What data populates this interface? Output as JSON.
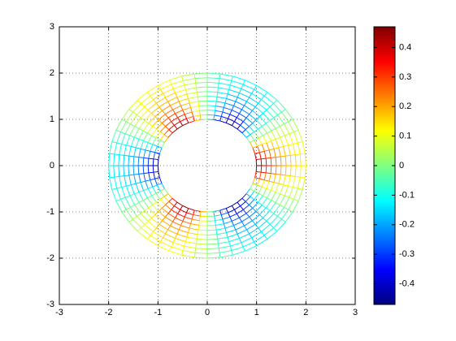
{
  "chart_data": {
    "type": "mesh",
    "colormap": "jet",
    "grid": true,
    "xlim": [
      -3,
      3
    ],
    "ylim": [
      -3,
      3
    ],
    "xticks": [
      -3,
      -2,
      -1,
      0,
      1,
      2,
      3
    ],
    "yticks": [
      -3,
      -2,
      -1,
      0,
      1,
      2,
      3
    ],
    "r": [
      1,
      1.1,
      1.2,
      1.3,
      1.4,
      1.5,
      1.6,
      1.7,
      1.8,
      1.9,
      2
    ],
    "theta": [
      0,
      7.5,
      15,
      22.5,
      30,
      37.5,
      45,
      52.5,
      60,
      67.5,
      75,
      82.5,
      90,
      97.5,
      105,
      112.5,
      120,
      127.5,
      135,
      142.5,
      150,
      157.5,
      165,
      172.5,
      180,
      187.5,
      195,
      202.5,
      210,
      217.5,
      225,
      232.5,
      240,
      247.5,
      255,
      262.5,
      270,
      277.5,
      285,
      292.5,
      300,
      307.5,
      315,
      322.5,
      330,
      337.5,
      345,
      352.5
    ],
    "z": [
      [
        0.47,
        0.43,
        0.33,
        0.18,
        0,
        -0.18,
        -0.33,
        -0.43,
        -0.47,
        -0.43,
        -0.33,
        -0.18,
        0,
        0.18,
        0.33,
        0.43,
        0.47,
        0.43,
        0.33,
        0.18,
        0,
        -0.18,
        -0.33,
        -0.43,
        -0.47,
        -0.43,
        -0.33,
        -0.18,
        0,
        0.18,
        0.33,
        0.43,
        0.47,
        0.43,
        0.33,
        0.18,
        0,
        -0.18,
        -0.33,
        -0.43,
        -0.47,
        -0.43,
        -0.33,
        -0.18,
        0,
        0.18,
        0.33,
        0.43
      ],
      [
        0.39,
        0.36,
        0.27,
        0.15,
        0,
        -0.15,
        -0.27,
        -0.36,
        -0.39,
        -0.36,
        -0.27,
        -0.15,
        0,
        0.15,
        0.27,
        0.36,
        0.39,
        0.36,
        0.27,
        0.15,
        0,
        -0.15,
        -0.27,
        -0.36,
        -0.39,
        -0.36,
        -0.27,
        -0.15,
        0,
        0.15,
        0.27,
        0.36,
        0.39,
        0.36,
        0.27,
        0.15,
        0,
        -0.15,
        -0.27,
        -0.36,
        -0.39,
        -0.36,
        -0.27,
        -0.15,
        0,
        0.15,
        0.27,
        0.36
      ],
      [
        0.33,
        0.3,
        0.23,
        0.12,
        0,
        -0.12,
        -0.23,
        -0.3,
        -0.33,
        -0.3,
        -0.23,
        -0.12,
        0,
        0.12,
        0.23,
        0.3,
        0.33,
        0.3,
        0.23,
        0.12,
        0,
        -0.12,
        -0.23,
        -0.3,
        -0.33,
        -0.3,
        -0.23,
        -0.12,
        0,
        0.12,
        0.23,
        0.3,
        0.33,
        0.3,
        0.23,
        0.12,
        0,
        -0.12,
        -0.23,
        -0.3,
        -0.33,
        -0.3,
        -0.23,
        -0.12,
        0,
        0.12,
        0.23,
        0.3
      ],
      [
        0.28,
        0.26,
        0.2,
        0.11,
        0,
        -0.11,
        -0.2,
        -0.26,
        -0.28,
        -0.26,
        -0.2,
        -0.11,
        0,
        0.11,
        0.2,
        0.26,
        0.28,
        0.26,
        0.2,
        0.11,
        0,
        -0.11,
        -0.2,
        -0.26,
        -0.28,
        -0.26,
        -0.2,
        -0.11,
        0,
        0.11,
        0.2,
        0.26,
        0.28,
        0.26,
        0.2,
        0.11,
        0,
        -0.11,
        -0.2,
        -0.26,
        -0.28,
        -0.26,
        -0.2,
        -0.11,
        0,
        0.11,
        0.2,
        0.26
      ],
      [
        0.24,
        0.22,
        0.17,
        0.09,
        0,
        -0.09,
        -0.17,
        -0.22,
        -0.24,
        -0.22,
        -0.17,
        -0.09,
        0,
        0.09,
        0.17,
        0.22,
        0.24,
        0.22,
        0.17,
        0.09,
        0,
        -0.09,
        -0.17,
        -0.22,
        -0.24,
        -0.22,
        -0.17,
        -0.09,
        0,
        0.09,
        0.17,
        0.22,
        0.24,
        0.22,
        0.17,
        0.09,
        0,
        -0.09,
        -0.17,
        -0.22,
        -0.24,
        -0.22,
        -0.17,
        -0.09,
        0,
        0.09,
        0.17,
        0.22
      ],
      [
        0.21,
        0.19,
        0.15,
        0.08,
        0,
        -0.08,
        -0.15,
        -0.19,
        -0.21,
        -0.19,
        -0.15,
        -0.08,
        0,
        0.08,
        0.15,
        0.19,
        0.21,
        0.19,
        0.15,
        0.08,
        0,
        -0.08,
        -0.15,
        -0.19,
        -0.21,
        -0.19,
        -0.15,
        -0.08,
        0,
        0.08,
        0.15,
        0.19,
        0.21,
        0.19,
        0.15,
        0.08,
        0,
        -0.08,
        -0.15,
        -0.19,
        -0.21,
        -0.19,
        -0.15,
        -0.08,
        0,
        0.08,
        0.15,
        0.19
      ],
      [
        0.18,
        0.17,
        0.13,
        0.07,
        0,
        -0.07,
        -0.13,
        -0.17,
        -0.18,
        -0.17,
        -0.13,
        -0.07,
        0,
        0.07,
        0.13,
        0.17,
        0.18,
        0.17,
        0.13,
        0.07,
        0,
        -0.07,
        -0.13,
        -0.17,
        -0.18,
        -0.17,
        -0.13,
        -0.07,
        0,
        0.07,
        0.13,
        0.17,
        0.18,
        0.17,
        0.13,
        0.07,
        0,
        -0.07,
        -0.13,
        -0.17,
        -0.18,
        -0.17,
        -0.13,
        -0.07,
        0,
        0.07,
        0.13,
        0.17
      ],
      [
        0.16,
        0.15,
        0.12,
        0.06,
        0,
        -0.06,
        -0.12,
        -0.15,
        -0.16,
        -0.15,
        -0.12,
        -0.06,
        0,
        0.06,
        0.12,
        0.15,
        0.16,
        0.15,
        0.12,
        0.06,
        0,
        -0.06,
        -0.12,
        -0.15,
        -0.16,
        -0.15,
        -0.12,
        -0.06,
        0,
        0.06,
        0.12,
        0.15,
        0.16,
        0.15,
        0.12,
        0.06,
        0,
        -0.06,
        -0.12,
        -0.15,
        -0.16,
        -0.15,
        -0.12,
        -0.06,
        0,
        0.06,
        0.12,
        0.15
      ],
      [
        0.15,
        0.13,
        0.1,
        0.06,
        0,
        -0.06,
        -0.1,
        -0.13,
        -0.15,
        -0.13,
        -0.1,
        -0.06,
        0,
        0.06,
        0.1,
        0.13,
        0.15,
        0.13,
        0.1,
        0.06,
        0,
        -0.06,
        -0.1,
        -0.13,
        -0.15,
        -0.13,
        -0.1,
        -0.06,
        0,
        0.06,
        0.1,
        0.13,
        0.15,
        0.13,
        0.1,
        0.06,
        0,
        -0.06,
        -0.1,
        -0.13,
        -0.15,
        -0.13,
        -0.1,
        -0.06,
        0,
        0.06,
        0.1,
        0.13
      ],
      [
        0.13,
        0.12,
        0.09,
        0.05,
        0,
        -0.05,
        -0.09,
        -0.12,
        -0.13,
        -0.12,
        -0.09,
        -0.05,
        0,
        0.05,
        0.09,
        0.12,
        0.13,
        0.12,
        0.09,
        0.05,
        0,
        -0.05,
        -0.09,
        -0.12,
        -0.13,
        -0.12,
        -0.09,
        -0.05,
        0,
        0.05,
        0.09,
        0.12,
        0.13,
        0.12,
        0.09,
        0.05,
        0,
        -0.05,
        -0.09,
        -0.12,
        -0.13,
        -0.12,
        -0.09,
        -0.05,
        0,
        0.05,
        0.09,
        0.12
      ],
      [
        0.12,
        0.11,
        0.08,
        0.04,
        0,
        -0.04,
        -0.08,
        -0.11,
        -0.12,
        -0.11,
        -0.08,
        -0.04,
        0,
        0.04,
        0.08,
        0.11,
        0.12,
        0.11,
        0.08,
        0.04,
        0,
        -0.04,
        -0.08,
        -0.11,
        -0.12,
        -0.11,
        -0.08,
        -0.04,
        0,
        0.04,
        0.08,
        0.11,
        0.12,
        0.11,
        0.08,
        0.04,
        0,
        -0.04,
        -0.08,
        -0.11,
        -0.12,
        -0.11,
        -0.08,
        -0.04,
        0,
        0.04,
        0.08,
        0.11
      ]
    ],
    "colorbar": {
      "clim": [
        -0.47,
        0.47
      ],
      "ticks": [
        -0.4,
        -0.3,
        -0.2,
        -0.1,
        0,
        0.1,
        0.2,
        0.3,
        0.4
      ]
    }
  }
}
